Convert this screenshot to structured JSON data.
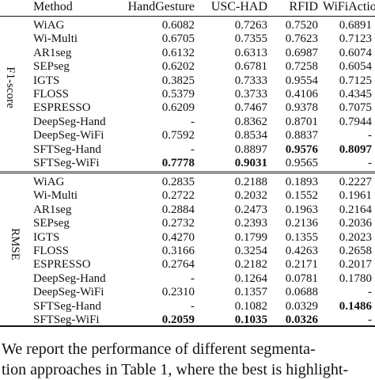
{
  "header": {
    "method": "Method",
    "cols": [
      "HandGesture",
      "USC-HAD",
      "RFID",
      "WiFiAction"
    ]
  },
  "sections": [
    {
      "label": "F1-score",
      "rows": [
        {
          "method": "WiAG",
          "values": [
            "0.6082",
            "0.7263",
            "0.7520",
            "0.6891"
          ],
          "bold": [
            false,
            false,
            false,
            false
          ]
        },
        {
          "method": "Wi-Multi",
          "values": [
            "0.6705",
            "0.7355",
            "0.7623",
            "0.7123"
          ],
          "bold": [
            false,
            false,
            false,
            false
          ]
        },
        {
          "method": "AR1seg",
          "values": [
            "0.6132",
            "0.6313",
            "0.6987",
            "0.6074"
          ],
          "bold": [
            false,
            false,
            false,
            false
          ]
        },
        {
          "method": "SEPseg",
          "values": [
            "0.6202",
            "0.6781",
            "0.7258",
            "0.6054"
          ],
          "bold": [
            false,
            false,
            false,
            false
          ]
        },
        {
          "method": "IGTS",
          "values": [
            "0.3825",
            "0.7333",
            "0.9554",
            "0.7125"
          ],
          "bold": [
            false,
            false,
            false,
            false
          ]
        },
        {
          "method": "FLOSS",
          "values": [
            "0.5379",
            "0.3733",
            "0.4106",
            "0.4345"
          ],
          "bold": [
            false,
            false,
            false,
            false
          ]
        },
        {
          "method": "ESPRESSO",
          "values": [
            "0.6209",
            "0.7467",
            "0.9378",
            "0.7075"
          ],
          "bold": [
            false,
            false,
            false,
            false
          ]
        },
        {
          "method": "DeepSeg-Hand",
          "values": [
            "-",
            "0.8362",
            "0.8701",
            "0.7944"
          ],
          "bold": [
            false,
            false,
            false,
            false
          ]
        },
        {
          "method": "DeepSeg-WiFi",
          "values": [
            "0.7592",
            "0.8534",
            "0.8837",
            "-"
          ],
          "bold": [
            false,
            false,
            false,
            false
          ]
        },
        {
          "method": "SFTSeg-Hand",
          "values": [
            "-",
            "0.8897",
            "0.9576",
            "0.8097"
          ],
          "bold": [
            false,
            false,
            true,
            true
          ]
        },
        {
          "method": "SFTSeg-WiFi",
          "values": [
            "0.7778",
            "0.9031",
            "0.9565",
            "-"
          ],
          "bold": [
            true,
            true,
            false,
            false
          ]
        }
      ]
    },
    {
      "label": "RMSE",
      "rows": [
        {
          "method": "WiAG",
          "values": [
            "0.2835",
            "0.2188",
            "0.1893",
            "0.2227"
          ],
          "bold": [
            false,
            false,
            false,
            false
          ]
        },
        {
          "method": "Wi-Multi",
          "values": [
            "0.2722",
            "0.2032",
            "0.1552",
            "0.1961"
          ],
          "bold": [
            false,
            false,
            false,
            false
          ]
        },
        {
          "method": "AR1seg",
          "values": [
            "0.2884",
            "0.2473",
            "0.1963",
            "0.2164"
          ],
          "bold": [
            false,
            false,
            false,
            false
          ]
        },
        {
          "method": "SEPseg",
          "values": [
            "0.2732",
            "0.2393",
            "0.2136",
            "0.2036"
          ],
          "bold": [
            false,
            false,
            false,
            false
          ]
        },
        {
          "method": "IGTS",
          "values": [
            "0.4270",
            "0.1799",
            "0.1355",
            "0.2023"
          ],
          "bold": [
            false,
            false,
            false,
            false
          ]
        },
        {
          "method": "FLOSS",
          "values": [
            "0.3166",
            "0.3254",
            "0.4263",
            "0.2658"
          ],
          "bold": [
            false,
            false,
            false,
            false
          ]
        },
        {
          "method": "ESPRESSO",
          "values": [
            "0.2764",
            "0.2182",
            "0.2171",
            "0.2017"
          ],
          "bold": [
            false,
            false,
            false,
            false
          ]
        },
        {
          "method": "DeepSeg-Hand",
          "values": [
            "-",
            "0.1264",
            "0.0781",
            "0.1780"
          ],
          "bold": [
            false,
            false,
            false,
            false
          ]
        },
        {
          "method": "DeepSeg-WiFi",
          "values": [
            "0.2310",
            "0.1357",
            "0.0688",
            "-"
          ],
          "bold": [
            false,
            false,
            false,
            false
          ]
        },
        {
          "method": "SFTSeg-Hand",
          "values": [
            "-",
            "0.1082",
            "0.0329",
            "0.1486"
          ],
          "bold": [
            false,
            false,
            false,
            true
          ]
        },
        {
          "method": "SFTSeg-WiFi",
          "values": [
            "0.2059",
            "0.1035",
            "0.0326",
            "-"
          ],
          "bold": [
            true,
            true,
            true,
            false
          ]
        }
      ]
    }
  ],
  "paragraph": [
    "We report the performance of different segmenta-",
    "tion approaches in Table 1, where the best is highlight-"
  ]
}
